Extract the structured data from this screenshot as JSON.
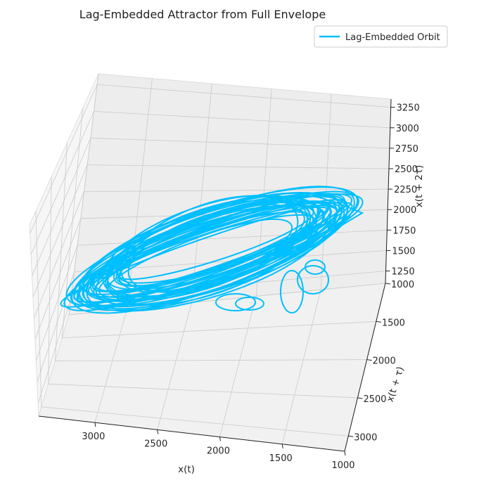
{
  "chart_data": {
    "type": "line",
    "projection": "3d",
    "title": "Lag-Embedded Attractor from Full Envelope",
    "xlabel": "x(t)",
    "ylabel": "x(t + τ)",
    "zlabel": "x(t + 2τ)",
    "x_ticks": [
      "3000",
      "2500",
      "2000",
      "1500",
      "1000"
    ],
    "y_ticks": [
      "1000",
      "1500",
      "2000",
      "2500",
      "3000"
    ],
    "z_ticks": [
      "1250",
      "1500",
      "1750",
      "2000",
      "2250",
      "2500",
      "2750",
      "3000",
      "3250"
    ],
    "xlim": [
      3450,
      1000
    ],
    "ylim": [
      1000,
      3200
    ],
    "zlim": [
      1100,
      3350
    ],
    "grid": true,
    "legend": {
      "position": "top-right",
      "entries": [
        "Lag-Embedded Orbit"
      ]
    },
    "series": [
      {
        "name": "Lag-Embedded Orbit",
        "color": "#00bfff"
      }
    ]
  }
}
